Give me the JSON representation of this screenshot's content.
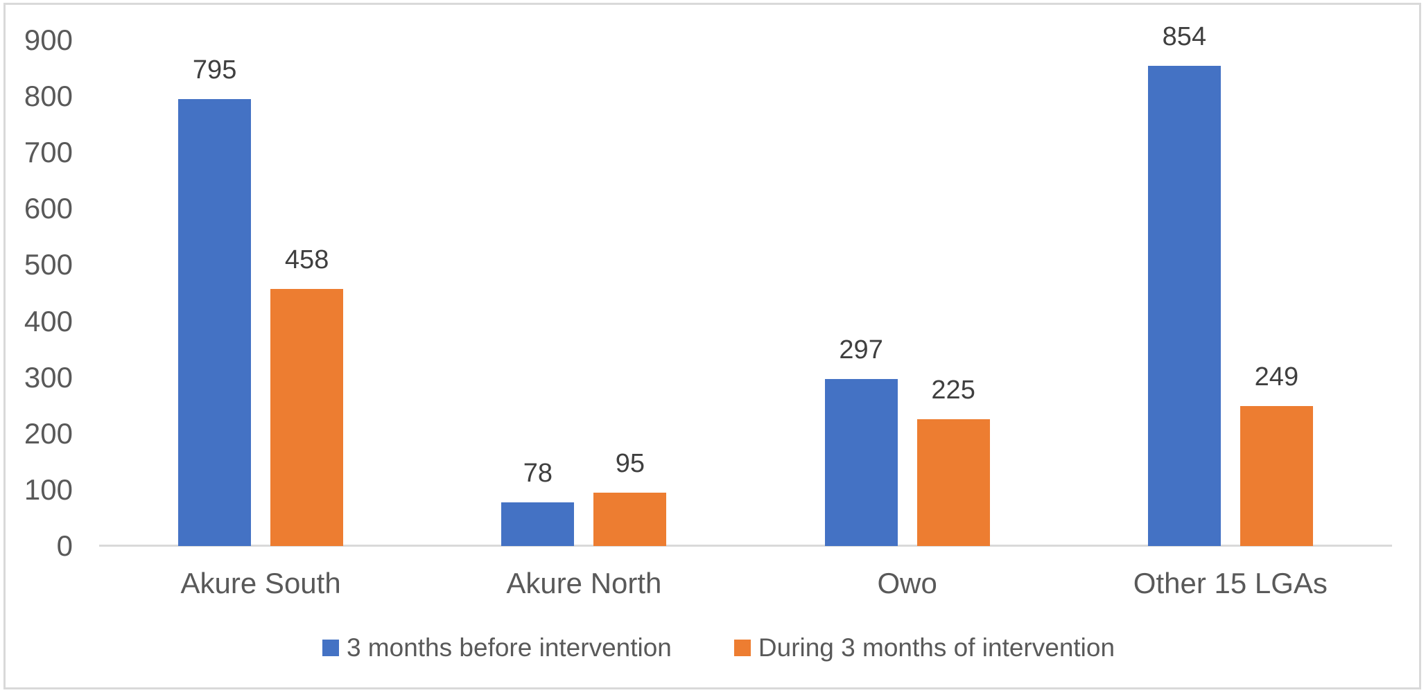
{
  "chart_data": {
    "type": "bar",
    "title": "",
    "categories": [
      "Akure South",
      "Akure North",
      "Owo",
      "Other 15 LGAs"
    ],
    "series": [
      {
        "name": "3 months before intervention",
        "color": "#4472C4",
        "values": [
          795,
          78,
          297,
          854
        ]
      },
      {
        "name": "During 3 months of intervention",
        "color": "#ED7D31",
        "values": [
          458,
          95,
          225,
          249
        ]
      }
    ],
    "ylim": [
      0,
      900
    ],
    "yticks": [
      0,
      100,
      200,
      300,
      400,
      500,
      600,
      700,
      800,
      900
    ],
    "grid": false,
    "data_labels": true,
    "legend_position": "bottom"
  },
  "colors": {
    "background": "#FFFFFF",
    "frame_border": "#D9D9D9",
    "axis_line": "#D9D9D9",
    "tick_text": "#595959",
    "category_text": "#595959",
    "data_label_text": "#3F3F3F",
    "legend_text": "#595959"
  }
}
